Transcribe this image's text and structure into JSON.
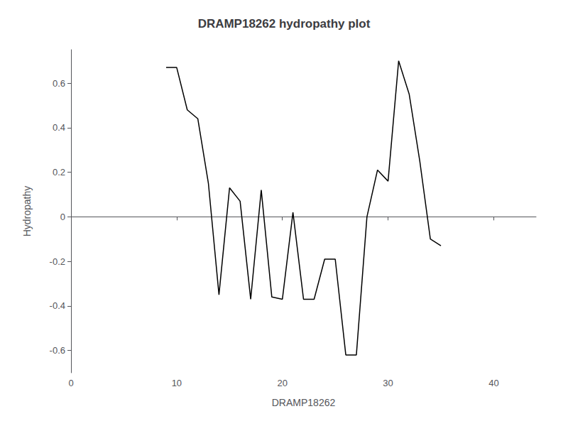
{
  "chart_data": {
    "type": "line",
    "title": "DRAMP18262 hydropathy plot",
    "xlabel": "DRAMP18262",
    "ylabel": "Hydropathy",
    "x": [
      9,
      10,
      11,
      12,
      13,
      14,
      15,
      16,
      17,
      18,
      19,
      20,
      21,
      22,
      23,
      24,
      25,
      26,
      27,
      28,
      29,
      30,
      31,
      32,
      33,
      34,
      35
    ],
    "values": [
      0.67,
      0.67,
      0.48,
      0.44,
      0.15,
      -0.35,
      0.13,
      0.07,
      -0.37,
      0.12,
      -0.36,
      -0.37,
      0.02,
      -0.37,
      -0.37,
      -0.19,
      -0.19,
      -0.62,
      -0.62,
      0.0,
      0.21,
      0.16,
      0.7,
      0.55,
      0.25,
      -0.1,
      -0.13
    ],
    "color": "#000000",
    "xlim": [
      0,
      44
    ],
    "xticks": [
      0,
      10,
      20,
      30,
      40
    ],
    "ylim": [
      -0.7,
      0.75
    ],
    "yticks": [
      -0.6,
      -0.4,
      -0.2,
      0,
      0.2,
      0.4,
      0.6
    ],
    "grid": false
  }
}
